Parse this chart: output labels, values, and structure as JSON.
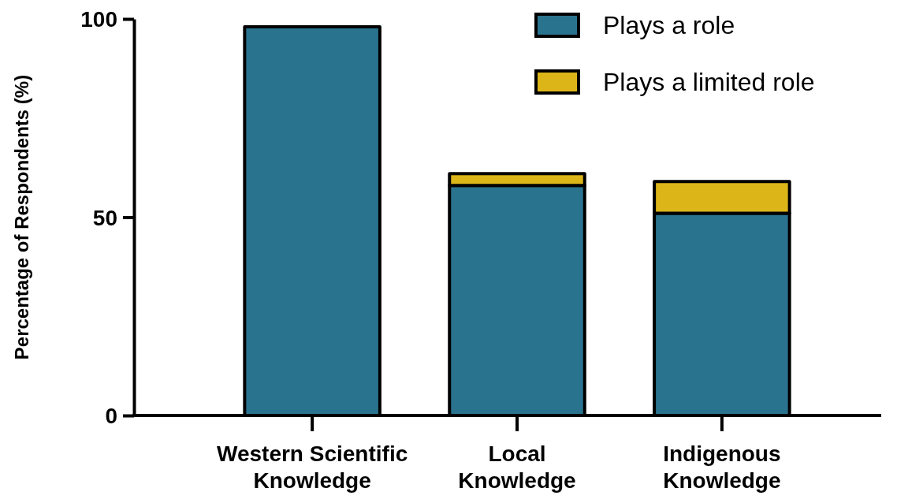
{
  "chart_data": {
    "type": "bar",
    "stacked": true,
    "ylabel": "Percentage of Respondents (%)",
    "categories": [
      "Western Scientific Knowledge",
      "Local Knowledge",
      "Indigenous Knowledge"
    ],
    "series": [
      {
        "name": "Plays a role",
        "color": "#2a738f",
        "values": [
          98,
          58,
          51
        ]
      },
      {
        "name": "Plays a limited role",
        "color": "#dcb519",
        "values": [
          0,
          3,
          8
        ]
      }
    ],
    "ylim": [
      0,
      100
    ],
    "yticks": [
      0,
      50,
      100
    ],
    "grid": false,
    "legend": "top right"
  }
}
